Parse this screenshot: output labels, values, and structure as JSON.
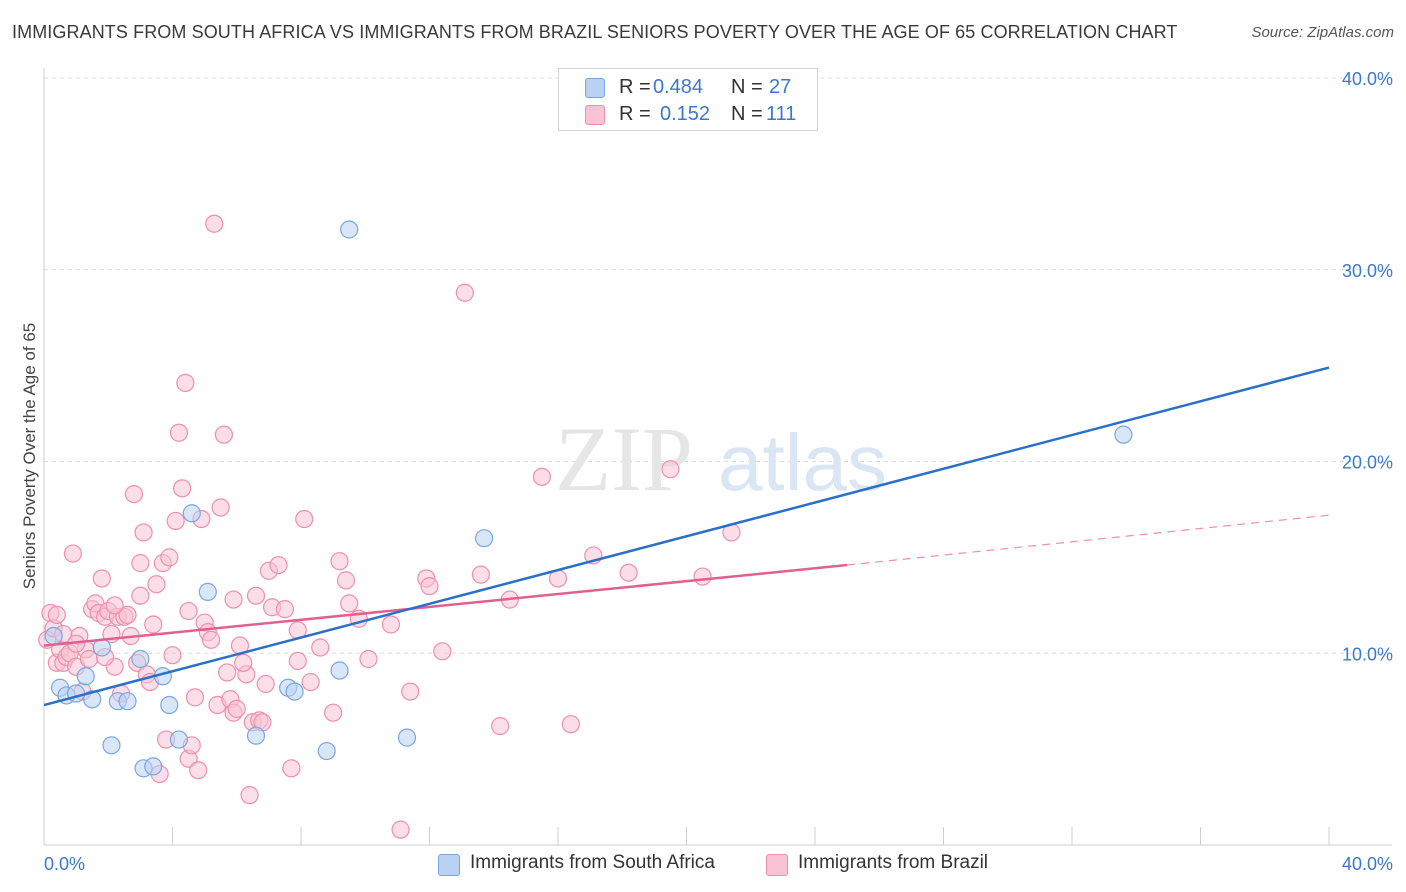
{
  "chart_data": {
    "type": "scatter",
    "title": "IMMIGRANTS FROM SOUTH AFRICA VS IMMIGRANTS FROM BRAZIL SENIORS POVERTY OVER THE AGE OF 65 CORRELATION CHART",
    "source": "Source: ZipAtlas.com",
    "ylabel": "Seniors Poverty Over the Age of 65",
    "xlim": [
      0,
      40
    ],
    "ylim": [
      0,
      40
    ],
    "x_tick_labels": [
      "0.0%",
      "40.0%"
    ],
    "y_ticks": [
      10,
      20,
      30,
      40
    ],
    "y_tick_labels": [
      "10.0%",
      "20.0%",
      "30.0%",
      "40.0%"
    ],
    "grid": true,
    "legend": {
      "placement": "top-center",
      "entries": [
        {
          "r_label": "R =",
          "r_value": "0.484",
          "n_label": "N =",
          "n_value": "27"
        },
        {
          "r_label": "R =",
          "r_value": "0.152",
          "n_label": "N =",
          "n_value": "111"
        }
      ]
    },
    "series": [
      {
        "name": "Immigrants from South Africa",
        "color": "#7aa7e0",
        "fill": "#b9d1f3",
        "trend": {
          "x": [
            0,
            40
          ],
          "y": [
            7.3,
            24.9
          ],
          "color": "#2a6fca"
        },
        "points": [
          [
            0.3,
            10.9
          ],
          [
            0.5,
            8.2
          ],
          [
            0.7,
            7.8
          ],
          [
            1.0,
            7.9
          ],
          [
            1.3,
            8.8
          ],
          [
            1.5,
            7.6
          ],
          [
            1.8,
            10.3
          ],
          [
            2.1,
            5.2
          ],
          [
            2.3,
            7.5
          ],
          [
            2.6,
            7.5
          ],
          [
            3.0,
            9.7
          ],
          [
            3.1,
            4.0
          ],
          [
            3.4,
            4.1
          ],
          [
            3.7,
            8.8
          ],
          [
            3.9,
            7.3
          ],
          [
            4.2,
            5.5
          ],
          [
            4.6,
            17.3
          ],
          [
            5.1,
            13.2
          ],
          [
            6.6,
            5.7
          ],
          [
            7.6,
            8.2
          ],
          [
            7.8,
            8.0
          ],
          [
            8.8,
            4.9
          ],
          [
            9.2,
            9.1
          ],
          [
            9.5,
            32.1
          ],
          [
            11.3,
            5.6
          ],
          [
            13.7,
            16.0
          ],
          [
            33.6,
            21.4
          ]
        ]
      },
      {
        "name": "Immigrants from Brazil",
        "color": "#ee8fae",
        "fill": "#f8c3d4",
        "trend": {
          "x": [
            0,
            25
          ],
          "y": [
            10.4,
            14.6
          ],
          "color": "#e06092"
        },
        "trend_dashed": {
          "x": [
            25,
            40
          ],
          "y": [
            14.6,
            17.2
          ]
        },
        "points": [
          [
            0.1,
            10.7
          ],
          [
            0.2,
            12.1
          ],
          [
            0.3,
            11.3
          ],
          [
            0.4,
            9.5
          ],
          [
            0.5,
            10.2
          ],
          [
            0.6,
            9.5
          ],
          [
            0.7,
            9.8
          ],
          [
            0.8,
            10.0
          ],
          [
            0.9,
            15.2
          ],
          [
            1.0,
            9.3
          ],
          [
            1.1,
            10.9
          ],
          [
            1.2,
            8.0
          ],
          [
            1.3,
            10.2
          ],
          [
            1.4,
            9.7
          ],
          [
            1.5,
            12.3
          ],
          [
            1.6,
            12.6
          ],
          [
            1.7,
            12.1
          ],
          [
            1.8,
            13.9
          ],
          [
            1.9,
            11.9
          ],
          [
            2.0,
            12.2
          ],
          [
            2.1,
            11.0
          ],
          [
            2.2,
            9.3
          ],
          [
            2.3,
            11.9
          ],
          [
            2.4,
            7.9
          ],
          [
            2.5,
            11.9
          ],
          [
            2.6,
            12.0
          ],
          [
            2.7,
            10.9
          ],
          [
            2.8,
            18.3
          ],
          [
            2.9,
            9.5
          ],
          [
            3.0,
            14.7
          ],
          [
            3.1,
            16.3
          ],
          [
            3.2,
            8.9
          ],
          [
            3.3,
            8.5
          ],
          [
            3.4,
            11.5
          ],
          [
            3.5,
            13.6
          ],
          [
            3.6,
            3.7
          ],
          [
            3.7,
            14.7
          ],
          [
            3.8,
            5.5
          ],
          [
            3.9,
            15.0
          ],
          [
            4.0,
            9.9
          ],
          [
            4.1,
            16.9
          ],
          [
            4.2,
            21.5
          ],
          [
            4.3,
            18.6
          ],
          [
            4.4,
            24.1
          ],
          [
            4.5,
            4.5
          ],
          [
            4.6,
            5.2
          ],
          [
            4.7,
            7.7
          ],
          [
            4.8,
            3.9
          ],
          [
            4.9,
            17.0
          ],
          [
            5.0,
            11.6
          ],
          [
            5.1,
            11.1
          ],
          [
            5.2,
            10.7
          ],
          [
            5.3,
            32.4
          ],
          [
            5.4,
            7.3
          ],
          [
            5.5,
            17.6
          ],
          [
            5.6,
            21.4
          ],
          [
            5.7,
            9.0
          ],
          [
            5.8,
            7.6
          ],
          [
            5.9,
            6.9
          ],
          [
            6.0,
            7.1
          ],
          [
            6.1,
            10.4
          ],
          [
            6.3,
            8.9
          ],
          [
            6.4,
            2.6
          ],
          [
            6.5,
            6.4
          ],
          [
            6.6,
            13.0
          ],
          [
            6.7,
            6.5
          ],
          [
            6.8,
            6.4
          ],
          [
            6.9,
            8.4
          ],
          [
            7.0,
            14.3
          ],
          [
            7.1,
            12.4
          ],
          [
            7.3,
            14.6
          ],
          [
            7.5,
            12.3
          ],
          [
            7.7,
            4.0
          ],
          [
            7.9,
            9.6
          ],
          [
            8.1,
            17.0
          ],
          [
            8.3,
            8.5
          ],
          [
            8.6,
            10.3
          ],
          [
            9.0,
            6.9
          ],
          [
            9.2,
            14.8
          ],
          [
            9.4,
            13.8
          ],
          [
            9.8,
            11.8
          ],
          [
            10.1,
            9.7
          ],
          [
            11.1,
            0.8
          ],
          [
            11.4,
            8.0
          ],
          [
            11.9,
            13.9
          ],
          [
            12.4,
            10.1
          ],
          [
            13.1,
            28.8
          ],
          [
            13.6,
            14.1
          ],
          [
            14.2,
            6.2
          ],
          [
            15.5,
            19.2
          ],
          [
            16.4,
            6.3
          ],
          [
            17.1,
            15.1
          ],
          [
            19.5,
            19.6
          ],
          [
            21.4,
            16.3
          ],
          [
            0.4,
            12.0
          ],
          [
            0.6,
            11.0
          ],
          [
            1.0,
            10.5
          ],
          [
            1.9,
            9.8
          ],
          [
            2.2,
            12.5
          ],
          [
            3.0,
            13.0
          ],
          [
            4.5,
            12.2
          ],
          [
            5.9,
            12.8
          ],
          [
            6.2,
            9.5
          ],
          [
            7.9,
            11.2
          ],
          [
            9.5,
            12.6
          ],
          [
            10.8,
            11.5
          ],
          [
            12.0,
            13.5
          ],
          [
            14.5,
            12.8
          ],
          [
            16.0,
            13.9
          ],
          [
            18.2,
            14.2
          ],
          [
            20.5,
            14.0
          ]
        ]
      }
    ]
  }
}
